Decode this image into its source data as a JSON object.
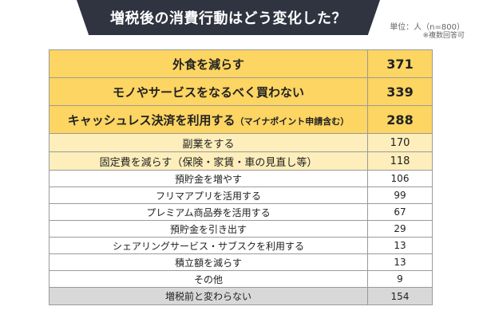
{
  "title": "増税後の消費行動はどう変化した？",
  "note_unit": "単位：人（n=800）",
  "note_multi": "※複数回答可",
  "colors": {
    "banner": "#2f3440",
    "top3": "#fcd562",
    "rank45": "#fdeebb",
    "others": "#ffffff",
    "unchanged": "#d8d8d8"
  },
  "chart_data": {
    "type": "table",
    "rows": [
      {
        "label": "外食を減らす",
        "value": 371
      },
      {
        "label": "モノやサービスをなるべく買わない",
        "value": 339
      },
      {
        "label": "キャッシュレス決済を利用する",
        "label_sub": "（マイナポイント申請含む）",
        "value": 288
      },
      {
        "label": "副業をする",
        "value": 170
      },
      {
        "label": "固定費を減らす（保険・家賃・車の見直し等）",
        "value": 118
      },
      {
        "label": "預貯金を増やす",
        "value": 106
      },
      {
        "label": "フリマアプリを活用する",
        "value": 99
      },
      {
        "label": "プレミアム商品券を活用する",
        "value": 67
      },
      {
        "label": "預貯金を引き出す",
        "value": 29
      },
      {
        "label": "シェアリングサービス・サブスクを利用する",
        "value": 13
      },
      {
        "label": "積立額を減らす",
        "value": 13
      },
      {
        "label": "その他",
        "value": 9
      },
      {
        "label": "増税前と変わらない",
        "value": 154
      }
    ]
  }
}
